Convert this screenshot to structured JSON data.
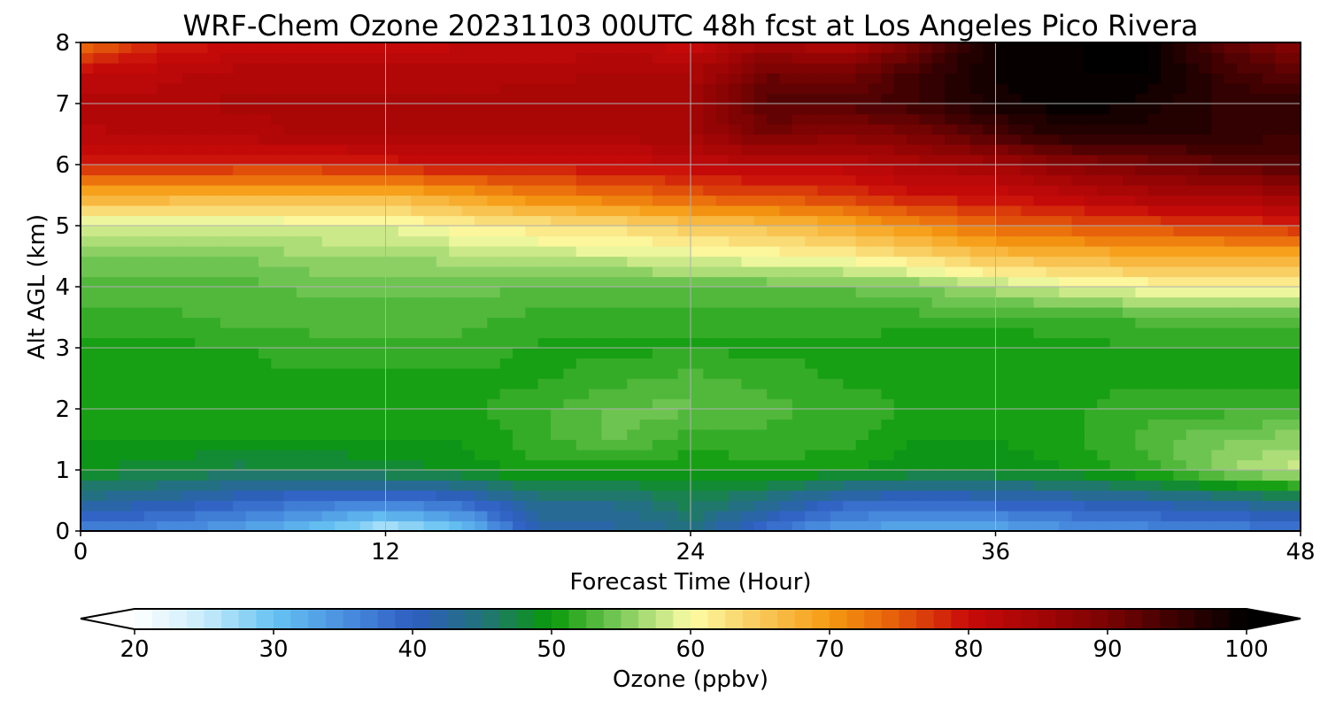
{
  "chart_data": {
    "type": "heatmap",
    "title": "WRF-Chem Ozone  20231103 00UTC 48h fcst at Los Angeles Pico Rivera",
    "xlabel": "Forecast Time (Hour)",
    "ylabel": "Alt AGL (km)",
    "xlim": [
      0,
      48
    ],
    "ylim": [
      0,
      8
    ],
    "xticks": [
      "0",
      "12",
      "24",
      "36",
      "48"
    ],
    "yticks": [
      "0",
      "1",
      "2",
      "3",
      "4",
      "5",
      "6",
      "7",
      "8"
    ],
    "grid": true,
    "colorbar": {
      "label": "Ozone  (ppbv)",
      "range": [
        20,
        100
      ],
      "ticks": [
        "20",
        "30",
        "40",
        "50",
        "60",
        "70",
        "80",
        "90",
        "100"
      ],
      "extend": "both",
      "stops": [
        {
          "v": 20,
          "color": "#ffffff"
        },
        {
          "v": 25,
          "color": "#c8ecfb"
        },
        {
          "v": 30,
          "color": "#66c3f2"
        },
        {
          "v": 35,
          "color": "#4a8fe0"
        },
        {
          "v": 40,
          "color": "#2e5ec2"
        },
        {
          "v": 45,
          "color": "#23737a"
        },
        {
          "v": 50,
          "color": "#0a9a0a"
        },
        {
          "v": 55,
          "color": "#7cca5a"
        },
        {
          "v": 60,
          "color": "#fcfca6"
        },
        {
          "v": 65,
          "color": "#f9c95a"
        },
        {
          "v": 70,
          "color": "#f59a12"
        },
        {
          "v": 75,
          "color": "#e55a0a"
        },
        {
          "v": 80,
          "color": "#c80a0a"
        },
        {
          "v": 85,
          "color": "#a50505"
        },
        {
          "v": 90,
          "color": "#7a0303"
        },
        {
          "v": 95,
          "color": "#3a0101"
        },
        {
          "v": 100,
          "color": "#000000"
        }
      ]
    },
    "time_hours": [
      0,
      3,
      6,
      9,
      12,
      15,
      18,
      21,
      24,
      27,
      30,
      33,
      36,
      39,
      42,
      45,
      48
    ],
    "altitude_km": [
      0,
      0.5,
      1,
      1.5,
      2,
      2.5,
      3,
      3.5,
      4,
      4.5,
      5,
      5.5,
      6,
      6.5,
      7,
      7.5,
      8
    ],
    "ozone_ppbv": [
      [
        36,
        35,
        33,
        30,
        25,
        29,
        41,
        42,
        44,
        38,
        33,
        32,
        32,
        34,
        35,
        36,
        37
      ],
      [
        43,
        42,
        40,
        38,
        37,
        39,
        44,
        44,
        47,
        44,
        40,
        39,
        40,
        41,
        42,
        43,
        45
      ],
      [
        49,
        48,
        47,
        47,
        48,
        49,
        51,
        50,
        50,
        51,
        50,
        49,
        49,
        50,
        52,
        56,
        58
      ],
      [
        50,
        50,
        50,
        50,
        50,
        50,
        52,
        54,
        52,
        52,
        52,
        50,
        50,
        51,
        53,
        55,
        56
      ],
      [
        51,
        51,
        51,
        51,
        51,
        51,
        52,
        54,
        54,
        53,
        52,
        51,
        51,
        51,
        52,
        52,
        52
      ],
      [
        51,
        51,
        51,
        51,
        51,
        51,
        51,
        52,
        53,
        52,
        51,
        51,
        51,
        51,
        51,
        51,
        51
      ],
      [
        51,
        51,
        51,
        52,
        52,
        52,
        51,
        51,
        51,
        51,
        51,
        50,
        50,
        51,
        51,
        51,
        51
      ],
      [
        52,
        52,
        53,
        53,
        53,
        53,
        52,
        52,
        52,
        52,
        52,
        52,
        52,
        52,
        53,
        53,
        53
      ],
      [
        53,
        53,
        53,
        54,
        54,
        54,
        54,
        54,
        54,
        54,
        54,
        55,
        57,
        59,
        60,
        60,
        60
      ],
      [
        55,
        55,
        55,
        56,
        56,
        57,
        58,
        58,
        59,
        60,
        61,
        63,
        66,
        67,
        68,
        68,
        68
      ],
      [
        58,
        58,
        58,
        59,
        59,
        61,
        62,
        63,
        65,
        66,
        68,
        71,
        74,
        75,
        76,
        77,
        78
      ],
      [
        68,
        68,
        67,
        67,
        67,
        69,
        72,
        73,
        75,
        76,
        77,
        80,
        80,
        82,
        84,
        84,
        86
      ],
      [
        79,
        79,
        78,
        78,
        79,
        80,
        80,
        80,
        81,
        82,
        82,
        84,
        85,
        88,
        90,
        92,
        93
      ],
      [
        82,
        83,
        83,
        84,
        84,
        84,
        84,
        84,
        85,
        90,
        88,
        90,
        94,
        97,
        97,
        96,
        95
      ],
      [
        83,
        83,
        84,
        84,
        84,
        84,
        85,
        85,
        85,
        93,
        93,
        95,
        98,
        100,
        98,
        96,
        96
      ],
      [
        81,
        82,
        83,
        83,
        83,
        83,
        83,
        84,
        84,
        91,
        90,
        95,
        99,
        100,
        100,
        95,
        92
      ],
      [
        73,
        78,
        80,
        80,
        80,
        81,
        81,
        82,
        80,
        85,
        83,
        90,
        99,
        100,
        100,
        92,
        88
      ]
    ]
  }
}
